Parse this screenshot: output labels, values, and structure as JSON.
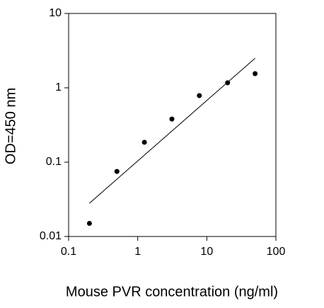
{
  "chart_data": {
    "type": "scatter",
    "x_label": "Mouse PVR concentration (ng/ml)",
    "y_label": "OD=450 nm",
    "x": [
      0.2,
      0.5,
      1.25,
      3.125,
      7.8,
      20,
      50
    ],
    "values": [
      0.015,
      0.075,
      0.185,
      0.38,
      0.785,
      1.17,
      1.55
    ],
    "color": "#000000",
    "fit_line": {
      "x": [
        0.2,
        50
      ],
      "values": [
        0.028,
        2.5
      ]
    },
    "xlim": [
      0.1,
      100
    ],
    "ylim": [
      0.01,
      10
    ],
    "xticks": [
      0.1,
      1,
      10,
      100
    ],
    "yticks": [
      0.01,
      0.1,
      1,
      10
    ],
    "xscale": "log",
    "yscale": "log",
    "grid": false
  }
}
